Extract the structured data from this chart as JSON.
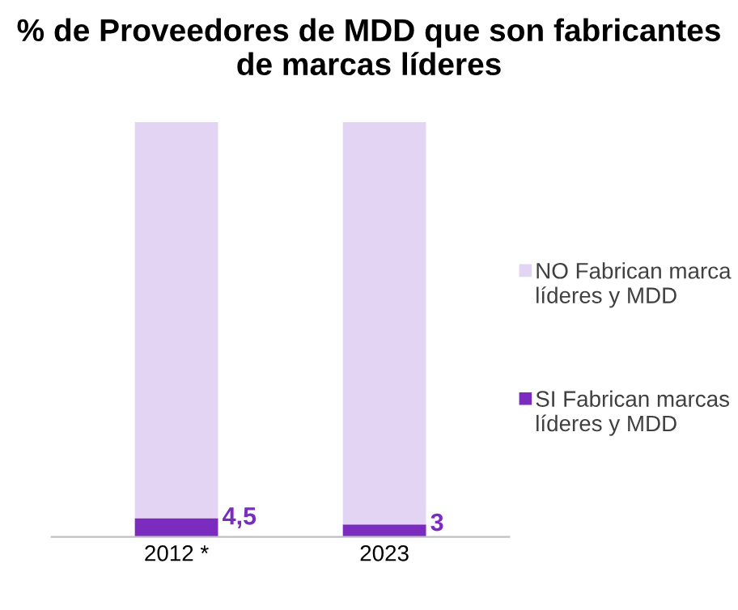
{
  "chart_data": {
    "type": "bar",
    "stacked": true,
    "title": "% de Proveedores de MDD que son fabricantes de marcas líderes",
    "categories": [
      "2012 *",
      "2023"
    ],
    "series": [
      {
        "name": "SI Fabrican marcas líderes y MDD",
        "color": "#7b2cbf",
        "values": [
          4.5,
          3
        ],
        "value_labels": [
          "4,5",
          "3"
        ]
      },
      {
        "name": "NO Fabrican marca líderes y MDD",
        "color": "#e4d4f4",
        "values": [
          95.5,
          97
        ]
      }
    ],
    "legend": "right",
    "grid": false,
    "tick_labels": "x"
  }
}
